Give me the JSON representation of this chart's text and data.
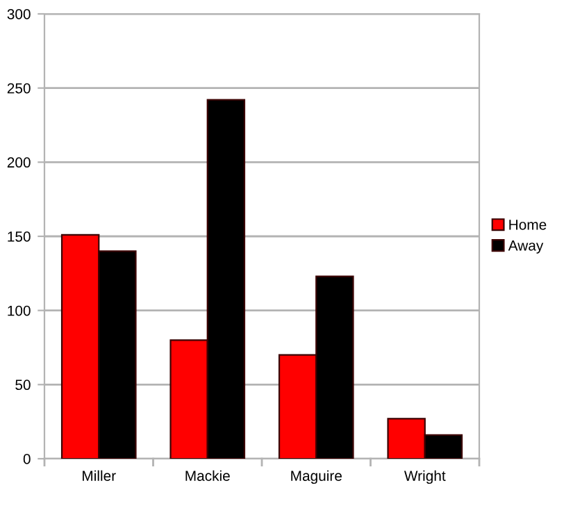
{
  "chart_data": {
    "type": "bar",
    "categories": [
      "Miller",
      "Mackie",
      "Maguire",
      "Wright"
    ],
    "series": [
      {
        "name": "Home",
        "color": "#ff0000",
        "values": [
          151,
          80,
          70,
          27
        ]
      },
      {
        "name": "Away",
        "color": "#000000",
        "values": [
          140,
          242,
          123,
          16
        ]
      }
    ],
    "ylim": [
      0,
      300
    ],
    "yticks": [
      0,
      50,
      100,
      150,
      200,
      250,
      300
    ],
    "grid": "y",
    "legend": "right"
  }
}
